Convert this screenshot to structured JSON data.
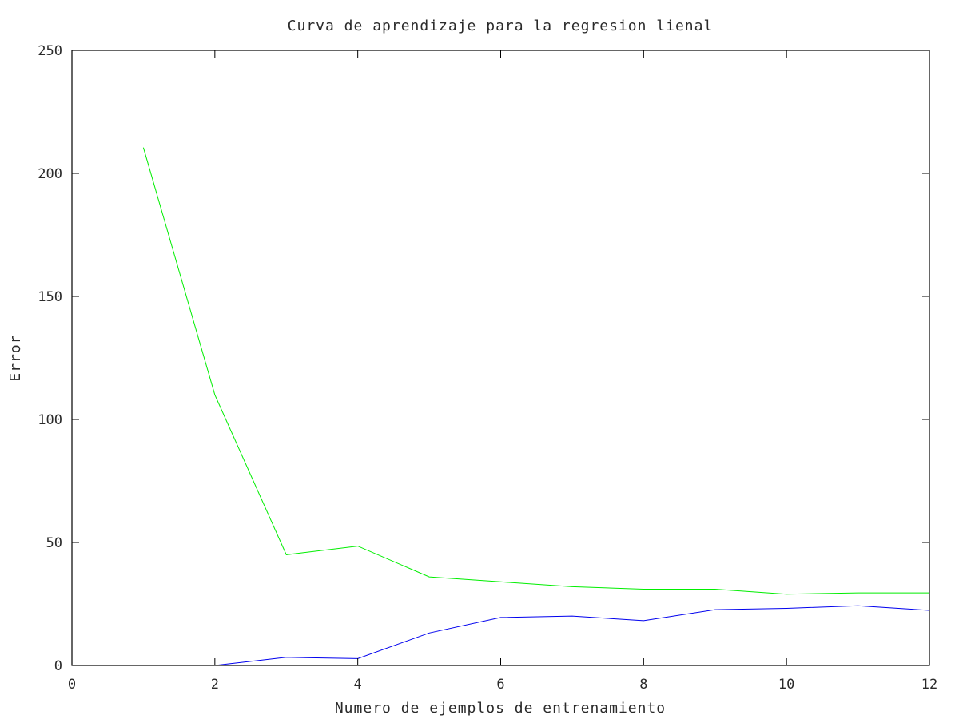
{
  "chart_data": {
    "type": "line",
    "title": "Curva de aprendizaje para la regresion lienal",
    "xlabel": "Numero de ejemplos de entrenamiento",
    "ylabel": "Error",
    "xlim": [
      0,
      12
    ],
    "ylim": [
      0,
      250
    ],
    "x_ticks": [
      "0",
      "2",
      "4",
      "6",
      "8",
      "10",
      "12"
    ],
    "y_ticks": [
      "0",
      "50",
      "100",
      "150",
      "200",
      "250"
    ],
    "grid": false,
    "legend": "none",
    "x": [
      1,
      2,
      3,
      4,
      5,
      6,
      7,
      8,
      9,
      10,
      11,
      12
    ],
    "series": [
      {
        "color": "#00ee00",
        "values": [
          210.5,
          110.0,
          45.0,
          48.5,
          36.0,
          34.0,
          32.0,
          31.0,
          31.0,
          29.0,
          29.5,
          29.5
        ]
      },
      {
        "color": "#0000ee",
        "values": [
          0.0,
          0.0,
          3.3,
          2.8,
          13.2,
          19.5,
          20.1,
          18.2,
          22.7,
          23.2,
          24.3,
          22.4
        ]
      }
    ]
  }
}
